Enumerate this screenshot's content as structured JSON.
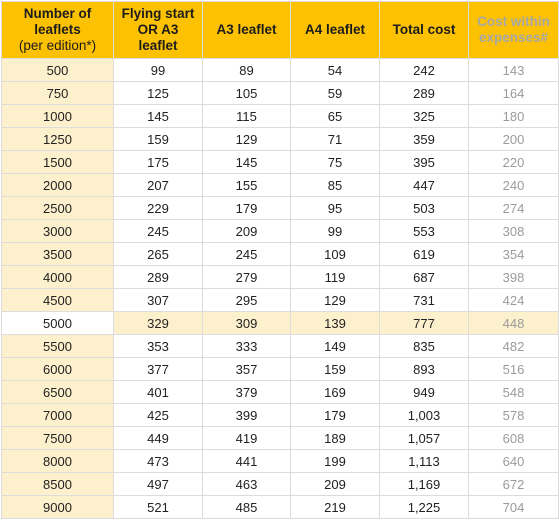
{
  "table": {
    "headers": [
      [
        "Number of",
        "leaflets",
        "(per edition*)"
      ],
      [
        "Flying start",
        "OR A3",
        "leaflet"
      ],
      [
        "A3 leaflet"
      ],
      [
        "A4 leaflet"
      ],
      [
        "Total cost"
      ],
      [
        "Cost within",
        "expenses#"
      ]
    ],
    "highlight_row": 11,
    "colors": {
      "header_bg": "#fcc100",
      "first_col_bg": "#fdf0cc",
      "highlight_bg": "#fdf0cc",
      "muted_text": "#9b9b9b",
      "grid": "#dcdcdc"
    },
    "rows": [
      [
        "500",
        "99",
        "89",
        "54",
        "242",
        "143"
      ],
      [
        "750",
        "125",
        "105",
        "59",
        "289",
        "164"
      ],
      [
        "1000",
        "145",
        "115",
        "65",
        "325",
        "180"
      ],
      [
        "1250",
        "159",
        "129",
        "71",
        "359",
        "200"
      ],
      [
        "1500",
        "175",
        "145",
        "75",
        "395",
        "220"
      ],
      [
        "2000",
        "207",
        "155",
        "85",
        "447",
        "240"
      ],
      [
        "2500",
        "229",
        "179",
        "95",
        "503",
        "274"
      ],
      [
        "3000",
        "245",
        "209",
        "99",
        "553",
        "308"
      ],
      [
        "3500",
        "265",
        "245",
        "109",
        "619",
        "354"
      ],
      [
        "4000",
        "289",
        "279",
        "119",
        "687",
        "398"
      ],
      [
        "4500",
        "307",
        "295",
        "129",
        "731",
        "424"
      ],
      [
        "5000",
        "329",
        "309",
        "139",
        "777",
        "448"
      ],
      [
        "5500",
        "353",
        "333",
        "149",
        "835",
        "482"
      ],
      [
        "6000",
        "377",
        "357",
        "159",
        "893",
        "516"
      ],
      [
        "6500",
        "401",
        "379",
        "169",
        "949",
        "548"
      ],
      [
        "7000",
        "425",
        "399",
        "179",
        "1,003",
        "578"
      ],
      [
        "7500",
        "449",
        "419",
        "189",
        "1,057",
        "608"
      ],
      [
        "8000",
        "473",
        "441",
        "199",
        "1,113",
        "640"
      ],
      [
        "8500",
        "497",
        "463",
        "209",
        "1,169",
        "672"
      ],
      [
        "9000",
        "521",
        "485",
        "219",
        "1,225",
        "704"
      ]
    ]
  }
}
